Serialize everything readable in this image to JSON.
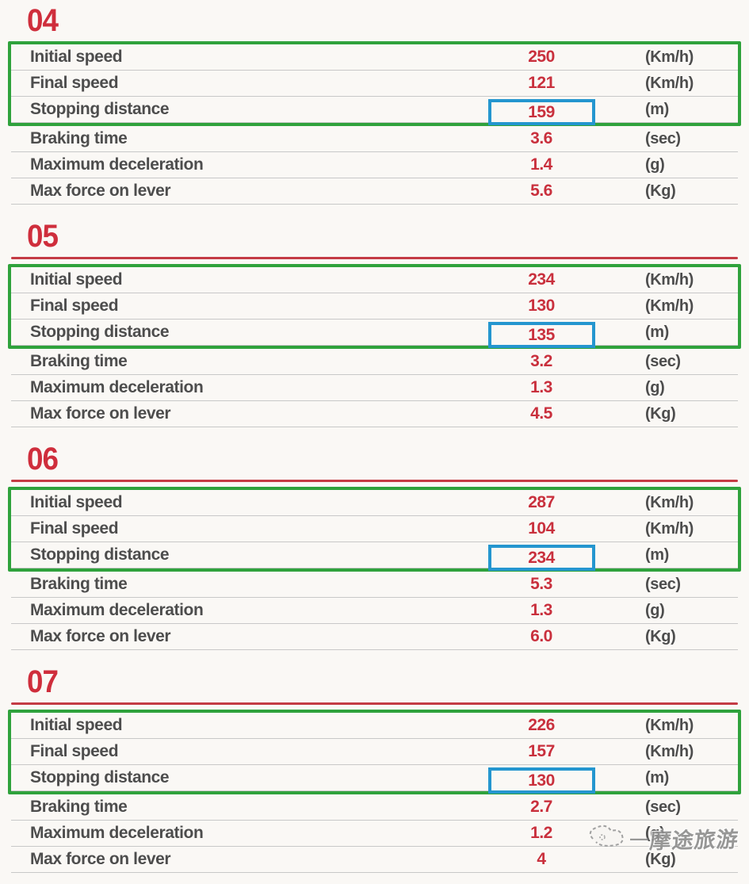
{
  "colors": {
    "accent_red": "#cf2e3c",
    "value_red": "#c9303d",
    "rule_red": "#c43b44",
    "green_box_border": "#2fa23c",
    "blue_box_border": "#2496cf",
    "label_gray": "#4d4d4d",
    "separator_gray": "#c8c8c8",
    "background": "#faf8f5"
  },
  "row_labels": [
    "Initial speed",
    "Final speed",
    "Stopping distance",
    "Braking time",
    "Maximum deceleration",
    "Max force on lever"
  ],
  "row_units": [
    "(Km/h)",
    "(Km/h)",
    "(m)",
    "(sec)",
    "(g)",
    "(Kg)"
  ],
  "highlighted_row_index": 2,
  "green_box_rows": [
    0,
    1,
    2
  ],
  "sections": [
    {
      "number": "04",
      "has_rule": false,
      "values": [
        "250",
        "121",
        "159",
        "3.6",
        "1.4",
        "5.6"
      ]
    },
    {
      "number": "05",
      "has_rule": true,
      "values": [
        "234",
        "130",
        "135",
        "3.2",
        "1.3",
        "4.5"
      ]
    },
    {
      "number": "06",
      "has_rule": true,
      "values": [
        "287",
        "104",
        "234",
        "5.3",
        "1.3",
        "6.0"
      ]
    },
    {
      "number": "07",
      "has_rule": true,
      "values": [
        "226",
        "157",
        "130",
        "2.7",
        "1.2",
        "4"
      ]
    }
  ],
  "watermark": {
    "dash": "—",
    "text": "摩途旅游"
  }
}
